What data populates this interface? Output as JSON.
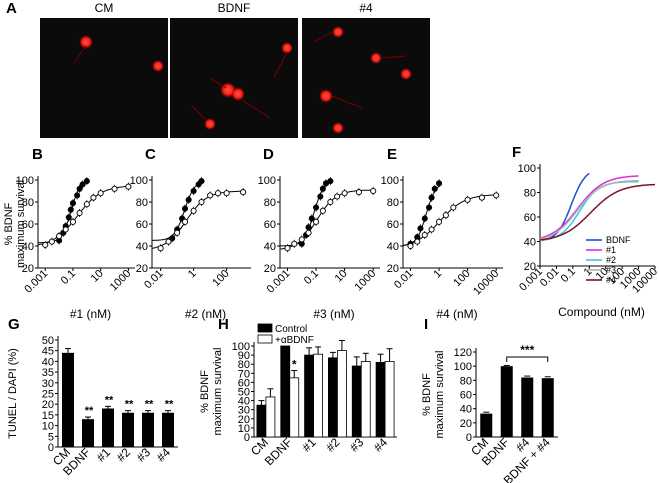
{
  "panel_letters": {
    "A": "A",
    "B": "B",
    "C": "C",
    "D": "D",
    "E": "E",
    "F": "F",
    "G": "G",
    "H": "H",
    "I": "I"
  },
  "micrographs": {
    "titles": [
      "CM",
      "BDNF",
      "#4"
    ],
    "cell_color": "#ff2020",
    "background": "#0b0b0b"
  },
  "chart_data": [
    {
      "id": "B",
      "type": "scatter",
      "xlabel": "#1 (nM)",
      "ylabel": "% BDNF\nmaximum survival",
      "x_scale": "log",
      "xlim": [
        0.0003,
        3000
      ],
      "ylim": [
        20,
        100
      ],
      "xticks": [
        0.001,
        0.1,
        10,
        1000
      ],
      "xtick_labels": [
        "0.001",
        "0.1",
        "10",
        "1000"
      ],
      "yticks": [
        20,
        40,
        60,
        80,
        100
      ],
      "series": [
        {
          "marker": "filled",
          "points": [
            [
              0.01,
              45
            ],
            [
              0.02,
              52
            ],
            [
              0.03,
              58
            ],
            [
              0.05,
              66
            ],
            [
              0.07,
              73
            ],
            [
              0.1,
              79
            ],
            [
              0.2,
              86
            ],
            [
              0.3,
              92
            ],
            [
              0.5,
              96
            ],
            [
              1,
              99
            ]
          ]
        },
        {
          "marker": "open",
          "points": [
            [
              0.001,
              41
            ],
            [
              0.003,
              44
            ],
            [
              0.01,
              49
            ],
            [
              0.03,
              55
            ],
            [
              0.1,
              62
            ],
            [
              0.3,
              70
            ],
            [
              1,
              78
            ],
            [
              3,
              84
            ],
            [
              10,
              88
            ],
            [
              100,
              92
            ],
            [
              1000,
              94
            ]
          ]
        }
      ]
    },
    {
      "id": "C",
      "type": "scatter",
      "xlabel": "#2 (nM)",
      "x_scale": "log",
      "xlim": [
        0.003,
        3000
      ],
      "ylim": [
        20,
        100
      ],
      "xticks": [
        0.01,
        1,
        100
      ],
      "xtick_labels": [
        "0.01",
        "1",
        "100"
      ],
      "yticks": [
        20,
        40,
        60,
        80,
        100
      ],
      "series": [
        {
          "marker": "filled",
          "points": [
            [
              0.05,
              47
            ],
            [
              0.1,
              55
            ],
            [
              0.2,
              65
            ],
            [
              0.3,
              74
            ],
            [
              0.5,
              82
            ],
            [
              1,
              90
            ],
            [
              2,
              96
            ],
            [
              3,
              99
            ]
          ]
        },
        {
          "marker": "open",
          "points": [
            [
              0.01,
              38
            ],
            [
              0.03,
              44
            ],
            [
              0.1,
              52
            ],
            [
              0.3,
              62
            ],
            [
              1,
              72
            ],
            [
              3,
              80
            ],
            [
              10,
              86
            ],
            [
              30,
              88
            ],
            [
              100,
              88
            ],
            [
              1000,
              89
            ]
          ]
        }
      ]
    },
    {
      "id": "D",
      "type": "scatter",
      "xlabel": "#3 (nM)",
      "x_scale": "log",
      "xlim": [
        0.0003,
        3000
      ],
      "ylim": [
        20,
        100
      ],
      "xticks": [
        0.001,
        0.1,
        10,
        1000
      ],
      "xtick_labels": [
        "0.001",
        "0.1",
        "10",
        "1000"
      ],
      "yticks": [
        20,
        40,
        60,
        80,
        100
      ],
      "series": [
        {
          "marker": "filled",
          "points": [
            [
              0.01,
              42
            ],
            [
              0.02,
              50
            ],
            [
              0.03,
              57
            ],
            [
              0.05,
              65
            ],
            [
              0.1,
              75
            ],
            [
              0.2,
              85
            ],
            [
              0.3,
              92
            ],
            [
              0.5,
              97
            ],
            [
              1,
              99
            ]
          ]
        },
        {
          "marker": "open",
          "points": [
            [
              0.001,
              38
            ],
            [
              0.003,
              42
            ],
            [
              0.01,
              46
            ],
            [
              0.03,
              52
            ],
            [
              0.1,
              62
            ],
            [
              0.3,
              72
            ],
            [
              1,
              80
            ],
            [
              3,
              85
            ],
            [
              10,
              88
            ],
            [
              100,
              89
            ],
            [
              1000,
              90
            ]
          ]
        }
      ]
    },
    {
      "id": "E",
      "type": "scatter",
      "xlabel": "#4 (nM)",
      "x_scale": "log",
      "xlim": [
        0.003,
        30000
      ],
      "ylim": [
        20,
        100
      ],
      "xticks": [
        0.01,
        1,
        100,
        10000
      ],
      "xtick_labels": [
        "0.01",
        "1",
        "100",
        "10000"
      ],
      "yticks": [
        20,
        40,
        60,
        80,
        100
      ],
      "series": [
        {
          "marker": "filled",
          "points": [
            [
              0.01,
              42
            ],
            [
              0.03,
              48
            ],
            [
              0.05,
              56
            ],
            [
              0.1,
              65
            ],
            [
              0.2,
              75
            ],
            [
              0.3,
              84
            ],
            [
              0.5,
              92
            ],
            [
              1,
              97
            ]
          ]
        },
        {
          "marker": "open",
          "points": [
            [
              0.01,
              40
            ],
            [
              0.03,
              44
            ],
            [
              0.1,
              50
            ],
            [
              0.3,
              55
            ],
            [
              1,
              62
            ],
            [
              3,
              68
            ],
            [
              10,
              75
            ],
            [
              100,
              82
            ],
            [
              1000,
              84
            ],
            [
              10000,
              86
            ]
          ]
        }
      ]
    },
    {
      "id": "F",
      "type": "line",
      "xlabel": "Compound (nM)",
      "x_scale": "log",
      "xlim": [
        0.001,
        10000
      ],
      "ylim": [
        20,
        100
      ],
      "xticks": [
        0.001,
        0.01,
        0.1,
        1,
        10,
        100,
        1000,
        10000
      ],
      "xtick_labels": [
        "0.001",
        "0.01",
        "0.1",
        "1",
        "10",
        "100",
        "1000",
        "10000"
      ],
      "yticks": [
        20,
        40,
        60,
        80,
        100
      ],
      "legend_position": "bottom-right",
      "series": [
        {
          "name": "BDNF",
          "color": "#1f4fd6",
          "bottom": 40,
          "top": 100,
          "ec50": 0.08,
          "hill": 1.0,
          "x_max": 1
        },
        {
          "name": "#1",
          "color": "#d62fd6",
          "bottom": 40,
          "top": 94,
          "ec50": 0.2,
          "hill": 0.55,
          "x_max": 1000
        },
        {
          "name": "#2",
          "color": "#33c9e0",
          "bottom": 40,
          "top": 89,
          "ec50": 0.25,
          "hill": 0.75,
          "x_max": 1000
        },
        {
          "name": "#3",
          "color": "#b0b0b0",
          "bottom": 40,
          "top": 90,
          "ec50": 0.18,
          "hill": 0.6,
          "x_max": 1000
        },
        {
          "name": "#4",
          "color": "#7a1424",
          "bottom": 40,
          "top": 87,
          "ec50": 1.2,
          "hill": 0.5,
          "x_max": 10000
        }
      ]
    },
    {
      "id": "G",
      "type": "bar",
      "ylabel": "TUNEL / DAPI (%)",
      "categories": [
        "CM",
        "BDNF",
        "#1",
        "#2",
        "#3",
        "#4"
      ],
      "values": [
        44,
        13,
        18,
        16,
        16,
        16
      ],
      "errors": [
        2,
        1,
        1,
        1,
        1,
        1
      ],
      "significance": [
        "",
        "**",
        "**",
        "**",
        "**",
        "**"
      ],
      "ylim": [
        0,
        50
      ],
      "yticks": [
        0,
        5,
        10,
        15,
        20,
        25,
        30,
        35,
        40,
        45,
        50
      ]
    },
    {
      "id": "H",
      "type": "bar",
      "ylabel": "% BDNF\nmaximum survival",
      "categories": [
        "CM",
        "BDNF",
        "#1",
        "#2",
        "#3",
        "#4"
      ],
      "ylim": [
        0,
        100
      ],
      "yticks": [
        0,
        10,
        20,
        30,
        40,
        50,
        60,
        70,
        80,
        90,
        100
      ],
      "legend_position": "top-left",
      "series": [
        {
          "name": "Control",
          "fill": "#000000",
          "values": [
            35,
            100,
            90,
            87,
            78,
            82
          ],
          "errors": [
            5,
            0,
            8,
            6,
            10,
            9
          ]
        },
        {
          "name": "+αBDNF",
          "fill": "#ffffff",
          "values": [
            44,
            65,
            91,
            95,
            83,
            83
          ],
          "errors": [
            9,
            8,
            8,
            11,
            9,
            14
          ]
        }
      ],
      "significance": [
        {
          "category": "BDNF",
          "label": "*"
        }
      ]
    },
    {
      "id": "I",
      "type": "bar",
      "ylabel": "% BDNF\nmaximum survival",
      "categories": [
        "CM",
        "BDNF",
        "#4",
        "BDNF + #4"
      ],
      "values": [
        33,
        100,
        84,
        83
      ],
      "errors": [
        2,
        1,
        2,
        2
      ],
      "ylim": [
        0,
        120
      ],
      "yticks": [
        0,
        20,
        40,
        60,
        80,
        100,
        120
      ],
      "significance_bracket": {
        "from": "BDNF",
        "to": "BDNF + #4",
        "label": "***"
      }
    }
  ]
}
